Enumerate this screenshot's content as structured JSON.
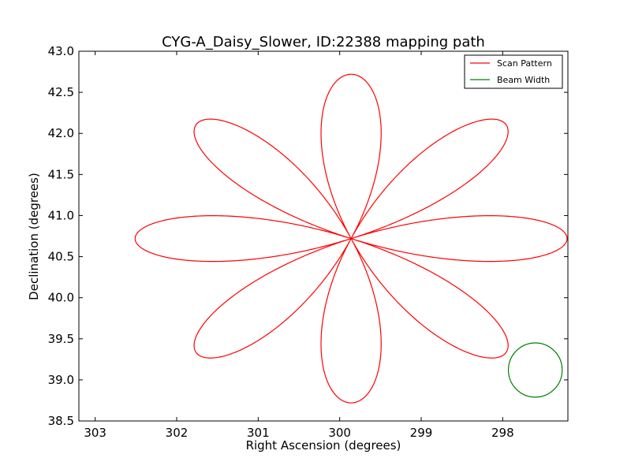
{
  "chart_data": {
    "type": "line",
    "title": "CYG-A_Daisy_Slower, ID:22388 mapping path",
    "xlabel": "Right Ascension (degrees)",
    "ylabel": "Declination (degrees)",
    "xlim": [
      303.2,
      297.2
    ],
    "ylim": [
      38.5,
      43.0
    ],
    "x_inverted": true,
    "x_ticks": [
      303,
      302,
      301,
      300,
      299,
      298
    ],
    "x_tick_labels": [
      "303",
      "302",
      "301",
      "300",
      "299",
      "298"
    ],
    "y_ticks": [
      38.5,
      39.0,
      39.5,
      40.0,
      40.5,
      41.0,
      41.5,
      42.0,
      42.5,
      43.0
    ],
    "y_tick_labels": [
      "38.5",
      "39.0",
      "39.5",
      "40.0",
      "40.5",
      "41.0",
      "41.5",
      "42.0",
      "42.5",
      "43.0"
    ],
    "grid": false,
    "legend_position": "top-right",
    "series": [
      {
        "name": "Scan Pattern",
        "color": "#ff0000",
        "shape": "rose",
        "center": [
          299.86,
          40.72
        ],
        "petals": 8,
        "petal_radius_ra": 2.65,
        "petal_radius_dec": 2.0,
        "ra_scale": 1.32
      },
      {
        "name": "Beam Width",
        "color": "#008000",
        "shape": "circle",
        "center": [
          297.6,
          39.12
        ],
        "radius_ra": 0.33,
        "radius_dec": 0.33
      }
    ]
  }
}
